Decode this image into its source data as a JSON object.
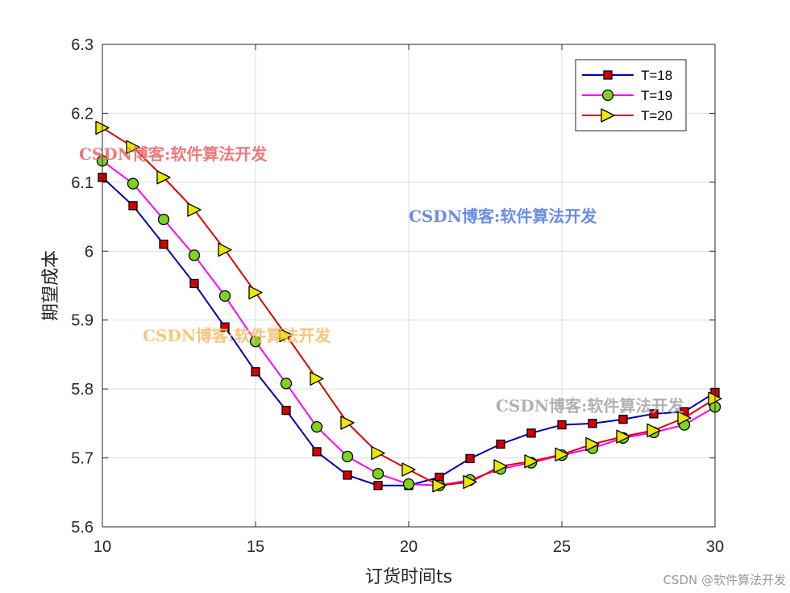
{
  "chart_data": {
    "type": "line",
    "xlabel": "订货时间ts",
    "ylabel": "期望成本",
    "xlim": [
      10,
      30
    ],
    "ylim": [
      5.6,
      6.3
    ],
    "xticks": [
      10,
      15,
      20,
      25,
      30
    ],
    "xtick_labels": [
      "10",
      "15",
      "20",
      "25",
      "30"
    ],
    "yticks": [
      5.6,
      5.7,
      5.8,
      5.9,
      6.0,
      6.1,
      6.2,
      6.3
    ],
    "ytick_labels": [
      "5.6",
      "5.7",
      "5.8",
      "5.9",
      "6",
      "6.1",
      "6.2",
      "6.3"
    ],
    "grid": true,
    "legend_position": "top-right",
    "x": [
      10,
      11,
      12,
      13,
      14,
      15,
      16,
      17,
      18,
      19,
      20,
      21,
      22,
      23,
      24,
      25,
      26,
      27,
      28,
      29,
      30
    ],
    "series": [
      {
        "name": "T=18",
        "marker": "square",
        "line_color": "#0000b0",
        "marker_color": "#d40000",
        "values": [
          6.107,
          6.066,
          6.01,
          5.953,
          5.89,
          5.825,
          5.769,
          5.709,
          5.675,
          5.66,
          5.66,
          5.672,
          5.699,
          5.72,
          5.736,
          5.748,
          5.75,
          5.756,
          5.764,
          5.767,
          5.795
        ]
      },
      {
        "name": "T=19",
        "marker": "circle",
        "line_color": "#ff00ff",
        "marker_color": "#7ed321",
        "values": [
          6.131,
          6.098,
          6.046,
          5.994,
          5.935,
          5.869,
          5.808,
          5.745,
          5.702,
          5.677,
          5.662,
          5.66,
          5.668,
          5.684,
          5.693,
          5.704,
          5.714,
          5.729,
          5.737,
          5.748,
          5.774
        ]
      },
      {
        "name": "T=20",
        "marker": "triangle-right",
        "line_color": "#e00000",
        "marker_color": "#e8e800",
        "values": [
          6.179,
          6.151,
          6.107,
          6.06,
          6.002,
          5.94,
          5.878,
          5.815,
          5.751,
          5.707,
          5.683,
          5.66,
          5.665,
          5.688,
          5.695,
          5.705,
          5.72,
          5.731,
          5.74,
          5.758,
          5.786
        ]
      }
    ]
  },
  "watermarks": [
    {
      "text": "CSDN博客:软件算法开发",
      "color": "#ee6a6a"
    },
    {
      "text": "CSDN博客:软件算法开发",
      "color": "#5a7fe0"
    },
    {
      "text": "CSDN博客:软件算法开发",
      "color": "#f5c070"
    },
    {
      "text": "CSDN博客:软件算法开发",
      "color": "#a8a8a8"
    }
  ],
  "footer_watermark": "CSDN @软件算法开发"
}
